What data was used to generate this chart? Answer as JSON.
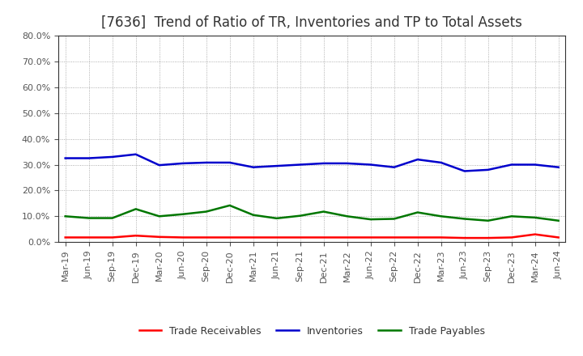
{
  "title": "[7636]  Trend of Ratio of TR, Inventories and TP to Total Assets",
  "x_labels": [
    "Mar-19",
    "Jun-19",
    "Sep-19",
    "Dec-19",
    "Mar-20",
    "Jun-20",
    "Sep-20",
    "Dec-20",
    "Mar-21",
    "Jun-21",
    "Sep-21",
    "Dec-21",
    "Mar-22",
    "Jun-22",
    "Sep-22",
    "Dec-22",
    "Mar-23",
    "Jun-23",
    "Sep-23",
    "Dec-23",
    "Mar-24",
    "Jun-24"
  ],
  "trade_receivables": [
    0.018,
    0.018,
    0.018,
    0.025,
    0.02,
    0.018,
    0.018,
    0.018,
    0.018,
    0.018,
    0.018,
    0.018,
    0.018,
    0.018,
    0.018,
    0.018,
    0.018,
    0.016,
    0.016,
    0.018,
    0.03,
    0.018
  ],
  "inventories": [
    0.325,
    0.325,
    0.33,
    0.34,
    0.298,
    0.305,
    0.308,
    0.308,
    0.29,
    0.295,
    0.3,
    0.305,
    0.305,
    0.3,
    0.29,
    0.32,
    0.308,
    0.275,
    0.28,
    0.3,
    0.3,
    0.29
  ],
  "trade_payables": [
    0.1,
    0.093,
    0.093,
    0.128,
    0.1,
    0.108,
    0.118,
    0.142,
    0.105,
    0.092,
    0.102,
    0.118,
    0.1,
    0.088,
    0.09,
    0.115,
    0.1,
    0.09,
    0.083,
    0.1,
    0.095,
    0.083
  ],
  "ylim": [
    0.0,
    0.8
  ],
  "yticks": [
    0.0,
    0.1,
    0.2,
    0.3,
    0.4,
    0.5,
    0.6,
    0.7,
    0.8
  ],
  "color_tr": "#ff0000",
  "color_inv": "#0000cc",
  "color_tp": "#007700",
  "background_color": "#ffffff",
  "grid_color": "#999999",
  "legend_labels": [
    "Trade Receivables",
    "Inventories",
    "Trade Payables"
  ],
  "title_fontsize": 12,
  "axis_fontsize": 8,
  "legend_fontsize": 9,
  "line_width": 1.8
}
